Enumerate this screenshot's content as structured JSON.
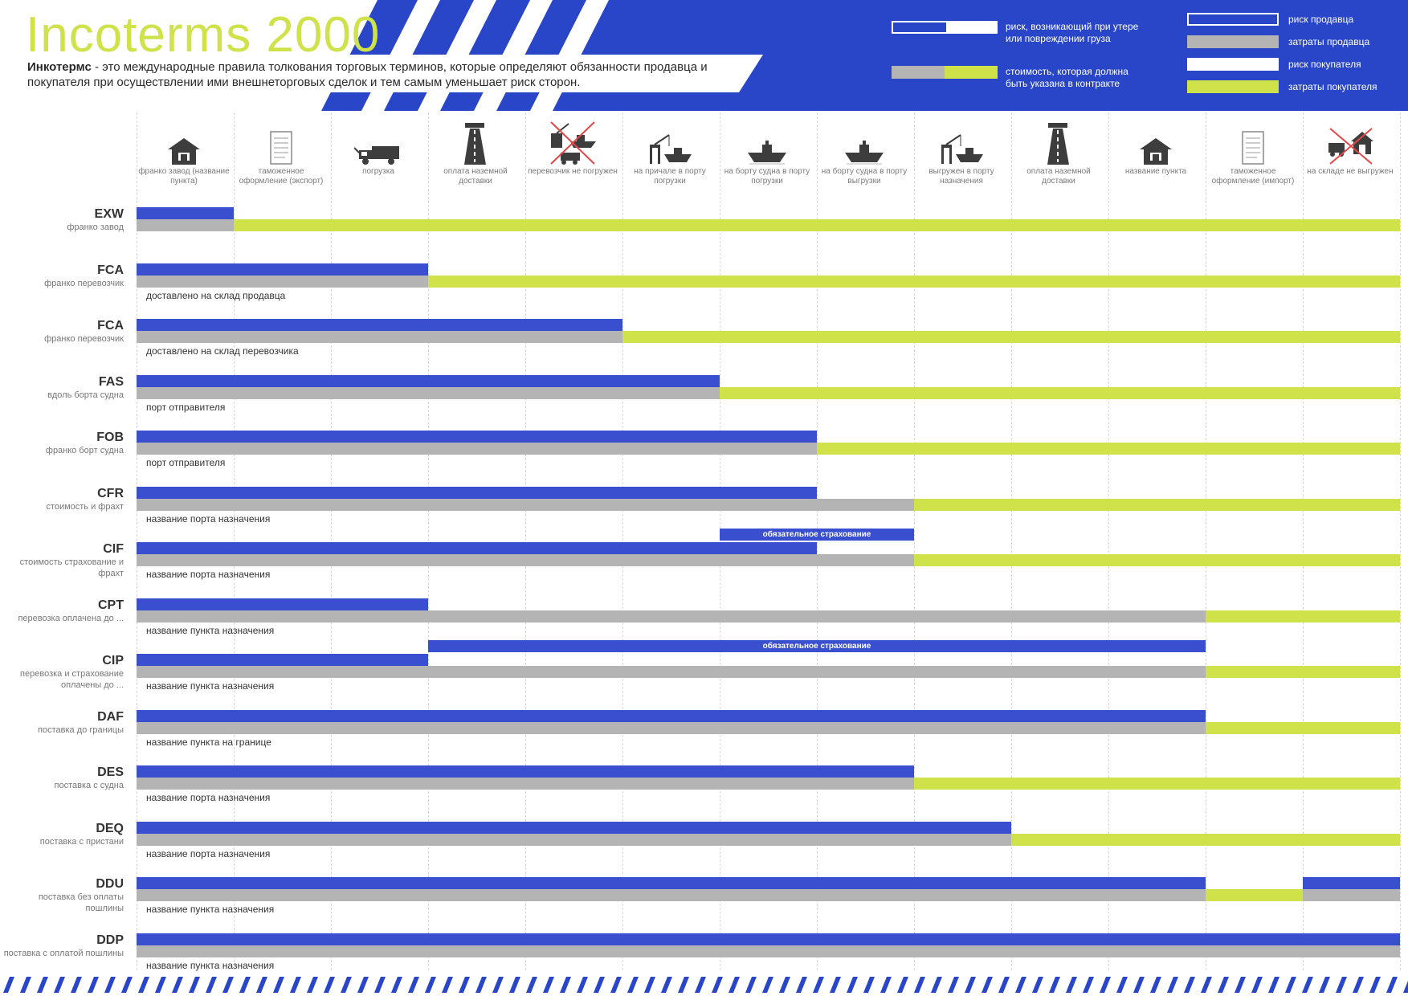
{
  "title": "Incoterms 2000",
  "intro": {
    "bold": "Инкотермс",
    "text": " - это международные правила толкования торговых терминов, которые определяют обязанности продавца и покупателя при осуществлении ими внешнеторговых сделок и тем самым уменьшает риск сторон."
  },
  "legend": {
    "risk_text": "риск, возникающий при утере или повреждении груза",
    "cost_text": "стоимость, которая должна быть указана в контракте",
    "items": [
      {
        "label": "риск продавца",
        "color": "#3a4fd0"
      },
      {
        "label": "затраты продавца",
        "color": "#b4b4b4"
      },
      {
        "label": "риск покупателя",
        "color": "#ffffff"
      },
      {
        "label": "затраты покупателя",
        "color": "#cfe24a"
      }
    ]
  },
  "colors": {
    "seller_risk": "#3a4fd0",
    "seller_cost": "#b4b4b4",
    "buyer_risk": "#ffffff",
    "buyer_cost": "#cfe24a",
    "banner": "#2a46c8"
  },
  "stages": [
    {
      "icon": "factory-icon",
      "label": "франко завод (название пункта)"
    },
    {
      "icon": "document-icon",
      "label": "таможенное оформление (экспорт)"
    },
    {
      "icon": "truck-icon",
      "label": "погрузка"
    },
    {
      "icon": "road-icon",
      "label": "оплата наземной доставки"
    },
    {
      "icon": "crossed-loading-icon",
      "label": "перевозчик не погружен"
    },
    {
      "icon": "port-crane-icon",
      "label": "на причале в порту погрузки"
    },
    {
      "icon": "ship-icon",
      "label": "на борту судна в порту погрузки"
    },
    {
      "icon": "ship-icon",
      "label": "на борту судна в порту выгрузки"
    },
    {
      "icon": "port-crane-icon",
      "label": "выгружен в порту назначения"
    },
    {
      "icon": "road-icon",
      "label": "оплата наземной доставки"
    },
    {
      "icon": "house-icon",
      "label": "название пункта"
    },
    {
      "icon": "document-icon",
      "label": "таможенное оформление (импорт)"
    },
    {
      "icon": "crossed-warehouse-icon",
      "label": "на складе не выгружен"
    }
  ],
  "terms": [
    {
      "code": "EXW",
      "desc": "франко завод",
      "note": "",
      "risk_end": 1,
      "cost": [
        [
          "seller",
          1
        ],
        [
          "buyer",
          13
        ]
      ]
    },
    {
      "code": "FCA",
      "desc": "франко перевозчик",
      "note": "доставлено на склад продавца",
      "risk_end": 3,
      "cost": [
        [
          "seller",
          3
        ],
        [
          "buyer",
          13
        ]
      ]
    },
    {
      "code": "FCA",
      "desc": "франко перевозчик",
      "note": "доставлено на склад перевозчика",
      "risk_end": 5,
      "cost": [
        [
          "seller",
          5
        ],
        [
          "buyer",
          13
        ]
      ]
    },
    {
      "code": "FAS",
      "desc": "вдоль борта судна",
      "note": "порт отправителя",
      "risk_end": 6,
      "cost": [
        [
          "seller",
          6
        ],
        [
          "buyer",
          13
        ]
      ]
    },
    {
      "code": "FOB",
      "desc": "франко борт судна",
      "note": "порт отправителя",
      "risk_end": 7,
      "cost": [
        [
          "seller",
          7
        ],
        [
          "buyer",
          13
        ]
      ]
    },
    {
      "code": "CFR",
      "desc": "стоимость и фрахт",
      "note": "название порта назначения",
      "risk_end": 7,
      "cost": [
        [
          "seller",
          8
        ],
        [
          "buyer",
          13
        ]
      ]
    },
    {
      "code": "CIF",
      "desc": "стоимость страхование и фрахт",
      "note": "название порта назначения",
      "risk_end": 7,
      "cost": [
        [
          "seller",
          8
        ],
        [
          "buyer",
          13
        ]
      ],
      "insurance": {
        "label": "обязательное страхование",
        "from": 6,
        "to": 8
      }
    },
    {
      "code": "CPT",
      "desc": "перевозка оплачена до ...",
      "note": "название пункта назначения",
      "risk_end": 3,
      "cost": [
        [
          "seller",
          11
        ],
        [
          "buyer",
          13
        ]
      ]
    },
    {
      "code": "CIP",
      "desc": "перевозка и страхование оплачены до ...",
      "note": "название пункта назначения",
      "risk_end": 3,
      "cost": [
        [
          "seller",
          11
        ],
        [
          "buyer",
          13
        ]
      ],
      "insurance": {
        "label": "обязательное страхование",
        "from": 3,
        "to": 11
      }
    },
    {
      "code": "DAF",
      "desc": "поставка до границы",
      "note": "название пункта на границе",
      "risk_end": 11,
      "cost": [
        [
          "seller",
          11
        ],
        [
          "buyer",
          13
        ]
      ]
    },
    {
      "code": "DES",
      "desc": "поставка с судна",
      "note": "название порта назначения",
      "risk_end": 8,
      "cost": [
        [
          "seller",
          8
        ],
        [
          "buyer",
          13
        ]
      ]
    },
    {
      "code": "DEQ",
      "desc": "поставка с пристани",
      "note": "название порта назначения",
      "risk_end": 9,
      "cost": [
        [
          "seller",
          9
        ],
        [
          "buyer",
          13
        ]
      ]
    },
    {
      "code": "DDU",
      "desc": "поставка без оплаты пошлины",
      "note": "название пункта назначения",
      "risk_end": 11,
      "risk_resume": 12,
      "cost": [
        [
          "seller",
          11
        ],
        [
          "buyer",
          12
        ],
        [
          "seller",
          13
        ]
      ]
    },
    {
      "code": "DDP",
      "desc": "поставка с оплатой пошлины",
      "note": "название пункта назначения",
      "risk_end": 13,
      "cost": [
        [
          "seller",
          13
        ]
      ]
    }
  ]
}
